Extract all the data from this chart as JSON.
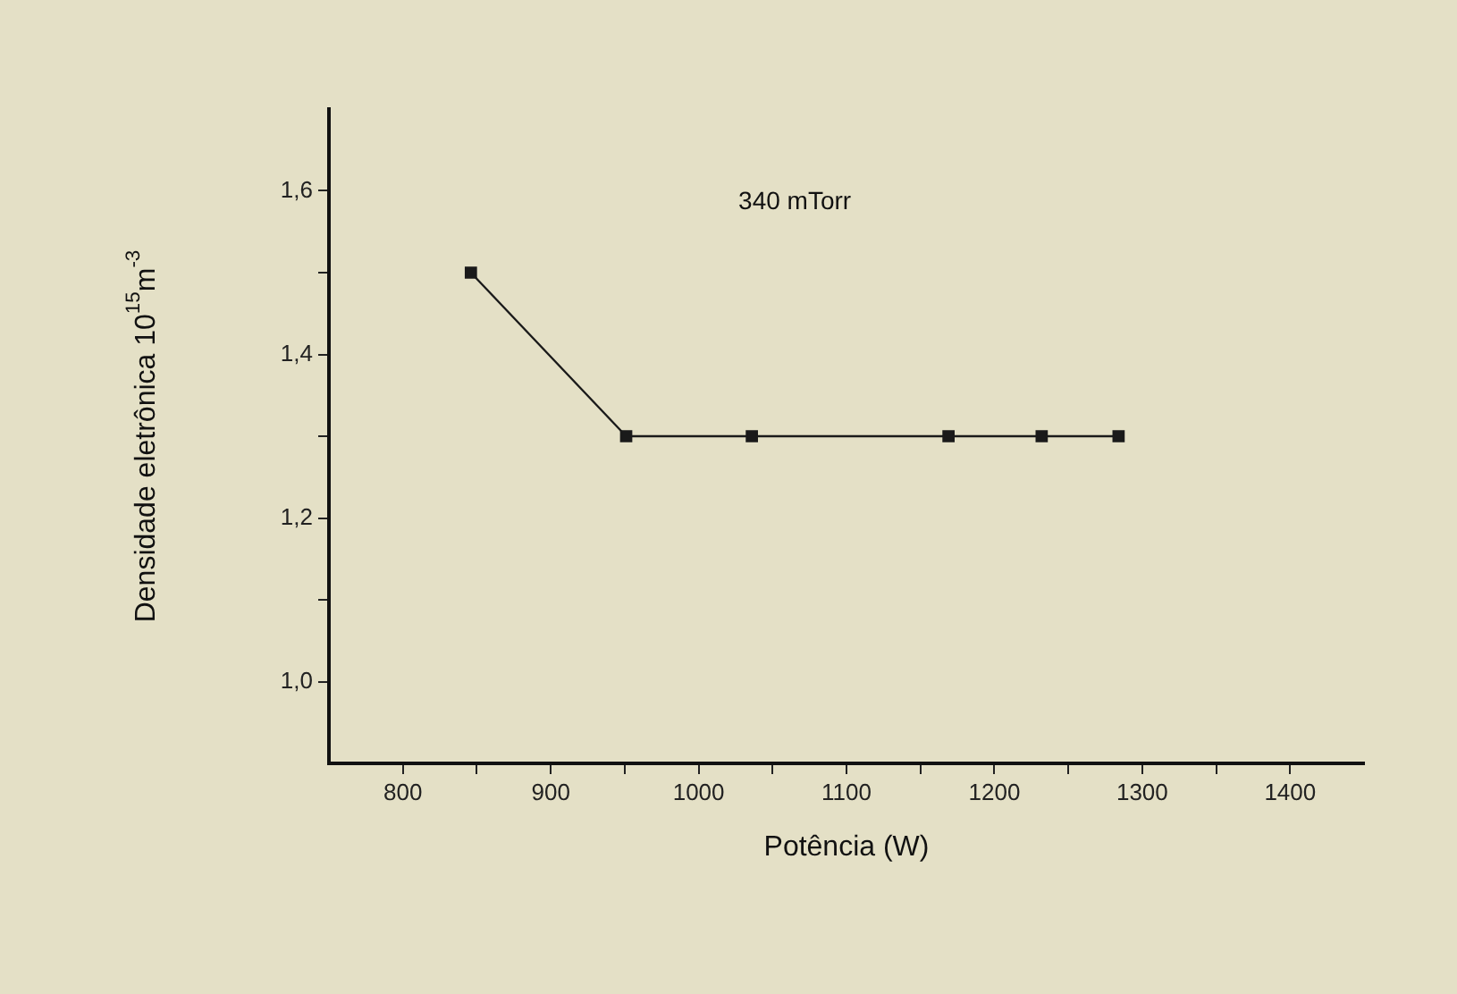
{
  "chart_data": {
    "type": "line",
    "xlabel": "Potência (W)",
    "ylabel": "Densidade eletrônica 10$^{15}$m$^{-3}$",
    "annotations": [
      "340 mTorr"
    ],
    "x": [
      846,
      951,
      1036,
      1169,
      1232,
      1284
    ],
    "series": [
      {
        "color": "#1a1a1a",
        "values": [
          1.5,
          1.3,
          1.3,
          1.3,
          1.3,
          1.3
        ]
      }
    ],
    "xlim": [
      750,
      1450
    ],
    "xticks": [
      800,
      {
        "value": 850,
        "label": null
      },
      900,
      {
        "value": 950,
        "label": null
      },
      1000,
      {
        "value": 1050,
        "label": null
      },
      1100,
      {
        "value": 1150,
        "label": null
      },
      1200,
      {
        "value": 1250,
        "label": null
      },
      1300,
      {
        "value": 1350,
        "label": null
      },
      1400
    ],
    "ylim": [
      0.9,
      1.7
    ],
    "yticks": [
      {
        "value": 1.0,
        "label": "1,0"
      },
      {
        "value": 1.1,
        "label": null
      },
      {
        "value": 1.2,
        "label": "1,2"
      },
      {
        "value": 1.3,
        "label": null
      },
      {
        "value": 1.4,
        "label": "1,4"
      },
      {
        "value": 1.5,
        "label": null
      },
      {
        "value": 1.6,
        "label": "1,6"
      }
    ],
    "marker": "square",
    "line_style": "solid",
    "grid": false,
    "legend": false
  }
}
